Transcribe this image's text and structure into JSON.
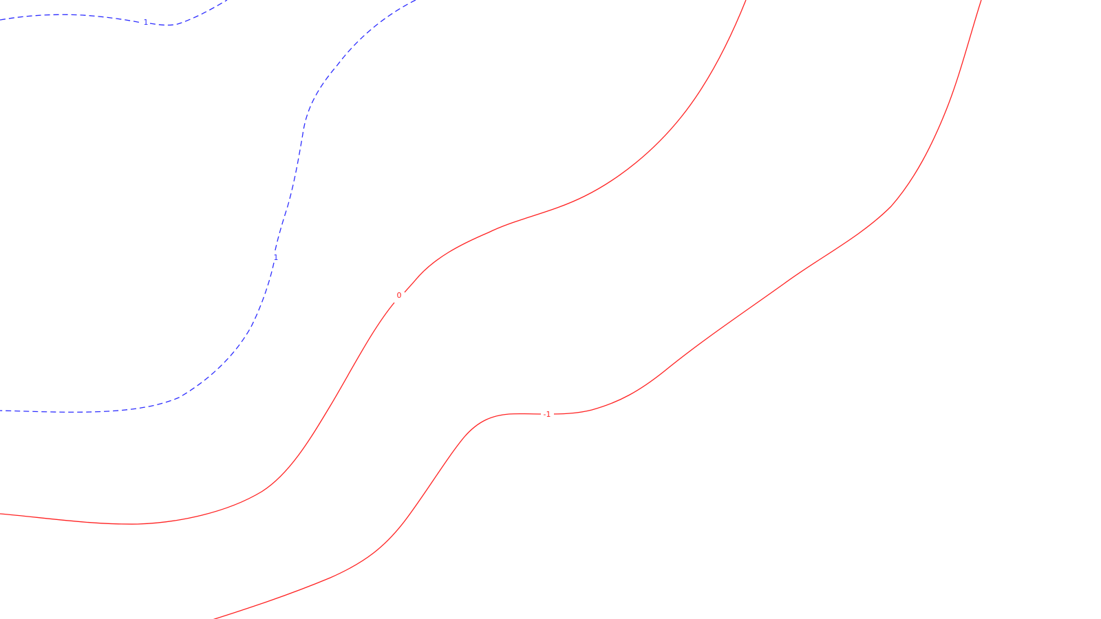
{
  "colors": {
    "background": "#ffffff",
    "negative_line": "#2b2bff",
    "positive_line": "#ff2020"
  },
  "contours": [
    {
      "id": "contour-blue-upper",
      "level_label": "1",
      "color": "#2b2bff",
      "style": "dashed"
    },
    {
      "id": "contour-blue-lower",
      "level_label": "1",
      "color": "#2b2bff",
      "style": "dashed"
    },
    {
      "id": "contour-red-middle",
      "level_label": "0",
      "color": "#ff2020",
      "style": "solid"
    },
    {
      "id": "contour-red-right",
      "level_label": "-1",
      "color": "#ff2020",
      "style": "solid"
    }
  ]
}
